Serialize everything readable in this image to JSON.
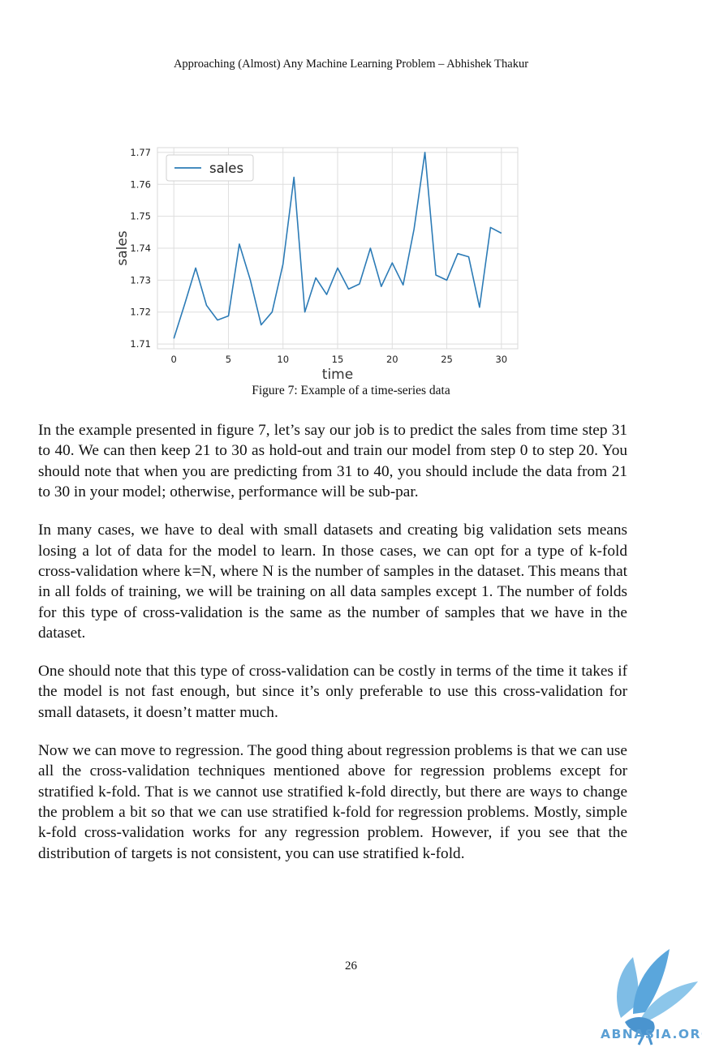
{
  "header": {
    "text": "Approaching (Almost) Any Machine Learning Problem – Abhishek Thakur"
  },
  "figure": {
    "caption": "Figure 7: Example of a time-series data"
  },
  "chart_data": {
    "type": "line",
    "xlabel": "time",
    "ylabel": "sales",
    "xlim": [
      -1.5,
      31.5
    ],
    "ylim": [
      1.7085,
      1.7715
    ],
    "x_ticks": [
      0,
      5,
      10,
      15,
      20,
      25,
      30
    ],
    "y_ticks": [
      1.71,
      1.72,
      1.73,
      1.74,
      1.75,
      1.76,
      1.77
    ],
    "grid": true,
    "legend_position": "top-left",
    "series": [
      {
        "name": "sales",
        "color": "#2c7bb6",
        "x": [
          0,
          1,
          2,
          3,
          4,
          5,
          6,
          7,
          8,
          9,
          10,
          11,
          12,
          13,
          14,
          15,
          16,
          17,
          18,
          19,
          20,
          21,
          22,
          23,
          24,
          25,
          26,
          27,
          28,
          29,
          30
        ],
        "values": [
          1.7117,
          1.7225,
          1.7338,
          1.7221,
          1.7175,
          1.7188,
          1.7413,
          1.7301,
          1.716,
          1.72,
          1.735,
          1.7622,
          1.72,
          1.7307,
          1.7255,
          1.7338,
          1.7272,
          1.7288,
          1.74,
          1.728,
          1.7354,
          1.7285,
          1.746,
          1.77,
          1.7316,
          1.73,
          1.7383,
          1.7373,
          1.7215,
          1.7465,
          1.7447
        ]
      }
    ]
  },
  "body": {
    "p1": "In the example presented in figure 7, let’s say our job is to predict the sales from time step 31 to 40. We can then keep 21 to 30 as hold-out and train our model from step 0 to step 20. You should note that when you are predicting from 31 to 40, you should include the data from 21 to 30 in your model; otherwise, performance will be sub-par.",
    "p2": "In many cases, we have to deal with small datasets and creating big validation sets means losing a lot of data for the model to learn. In those cases, we can opt for a type of k-fold cross-validation where k=N, where N is the number of samples in the dataset. This means that in all folds of training, we will be training on all data samples except 1. The number of folds for this type of cross-validation is the same as the number of samples that we have in the dataset.",
    "p3": "One should note that this type of cross-validation can be costly in terms of the time it takes if the model is not fast enough, but since it’s only preferable to use this cross-validation for small datasets, it doesn’t matter much.",
    "p4": "Now we can move to regression. The good thing about regression problems is that we can use all the cross-validation techniques mentioned above for regression problems except for stratified k-fold. That is we cannot use stratified k-fold directly, but there are ways to change the problem a bit so that we can use stratified k-fold for regression problems. Mostly, simple k-fold cross-validation works for any regression problem. However, if you see that the distribution of targets is not consistent, you can use stratified k-fold."
  },
  "page_number": "26",
  "watermark": {
    "text": "ABNASIA.ORG",
    "icon": "bird-logo-icon",
    "color": "#5a9fd4"
  }
}
